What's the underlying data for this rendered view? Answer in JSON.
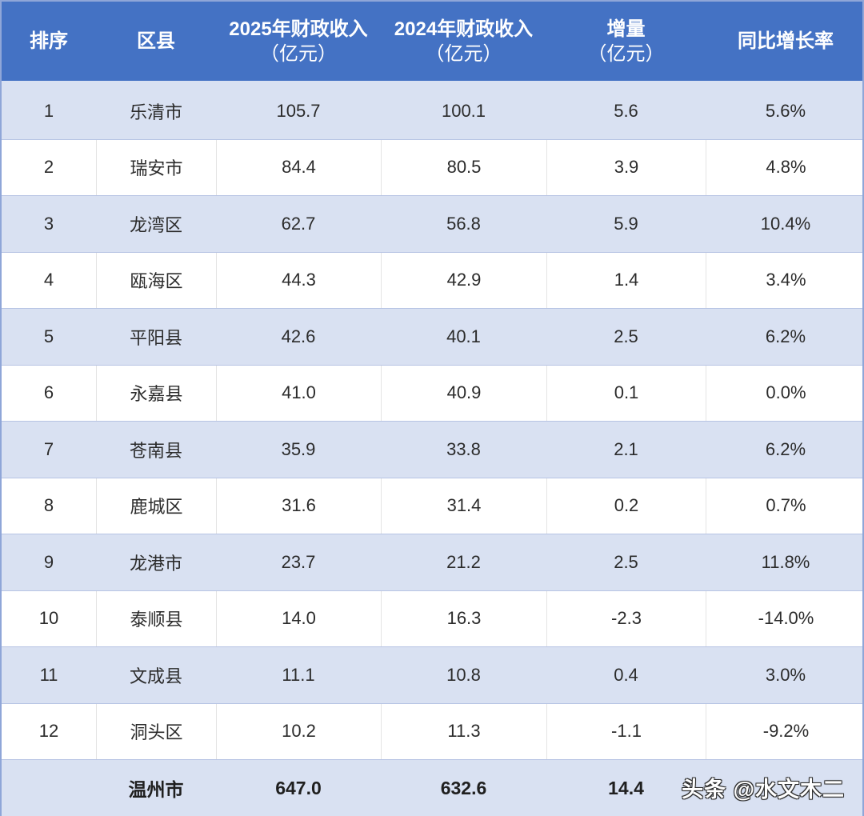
{
  "table": {
    "headers": [
      {
        "line1": "排序",
        "line2": ""
      },
      {
        "line1": "区县",
        "line2": ""
      },
      {
        "line1": "2025年财政收入",
        "line2": "（亿元）"
      },
      {
        "line1": "2024年财政收入",
        "line2": "（亿元）"
      },
      {
        "line1": "增量",
        "line2": "（亿元）"
      },
      {
        "line1": "同比增长率",
        "line2": ""
      }
    ],
    "rows": [
      {
        "rank": "1",
        "name": "乐清市",
        "rev2025": "105.7",
        "rev2024": "100.1",
        "increase": "5.6",
        "growth": "5.6%"
      },
      {
        "rank": "2",
        "name": "瑞安市",
        "rev2025": "84.4",
        "rev2024": "80.5",
        "increase": "3.9",
        "growth": "4.8%"
      },
      {
        "rank": "3",
        "name": "龙湾区",
        "rev2025": "62.7",
        "rev2024": "56.8",
        "increase": "5.9",
        "growth": "10.4%"
      },
      {
        "rank": "4",
        "name": "瓯海区",
        "rev2025": "44.3",
        "rev2024": "42.9",
        "increase": "1.4",
        "growth": "3.4%"
      },
      {
        "rank": "5",
        "name": "平阳县",
        "rev2025": "42.6",
        "rev2024": "40.1",
        "increase": "2.5",
        "growth": "6.2%"
      },
      {
        "rank": "6",
        "name": "永嘉县",
        "rev2025": "41.0",
        "rev2024": "40.9",
        "increase": "0.1",
        "growth": "0.0%"
      },
      {
        "rank": "7",
        "name": "苍南县",
        "rev2025": "35.9",
        "rev2024": "33.8",
        "increase": "2.1",
        "growth": "6.2%"
      },
      {
        "rank": "8",
        "name": "鹿城区",
        "rev2025": "31.6",
        "rev2024": "31.4",
        "increase": "0.2",
        "growth": "0.7%"
      },
      {
        "rank": "9",
        "name": "龙港市",
        "rev2025": "23.7",
        "rev2024": "21.2",
        "increase": "2.5",
        "growth": "11.8%"
      },
      {
        "rank": "10",
        "name": "泰顺县",
        "rev2025": "14.0",
        "rev2024": "16.3",
        "increase": "-2.3",
        "growth": "-14.0%"
      },
      {
        "rank": "11",
        "name": "文成县",
        "rev2025": "11.1",
        "rev2024": "10.8",
        "increase": "0.4",
        "growth": "3.0%"
      },
      {
        "rank": "12",
        "name": "洞头区",
        "rev2025": "10.2",
        "rev2024": "11.3",
        "increase": "-1.1",
        "growth": "-9.2%"
      }
    ],
    "total": {
      "rank": "",
      "name": "温州市",
      "rev2025": "647.0",
      "rev2024": "632.6",
      "increase": "14.4",
      "growth": ""
    }
  },
  "watermark": "头条 @水文木二",
  "colors": {
    "header_bg": "#4472c4",
    "row_shade": "#d9e1f2",
    "row_plain": "#ffffff"
  }
}
